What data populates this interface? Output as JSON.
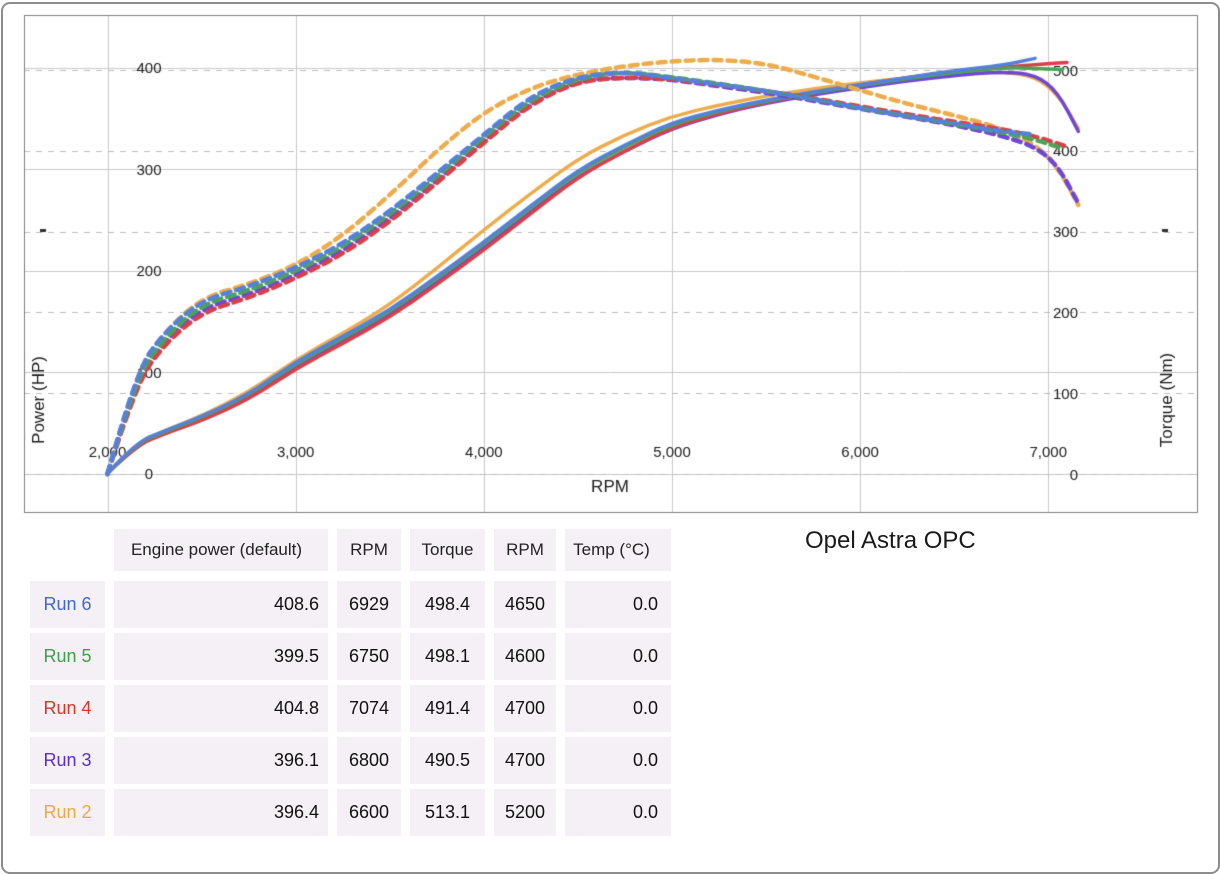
{
  "title": "Opel Astra OPC",
  "chart": {
    "x_axis": {
      "title": "RPM",
      "ticks": [
        {
          "v": 2000,
          "label": "2,000"
        },
        {
          "v": 3000,
          "label": "3,000"
        },
        {
          "v": 4000,
          "label": "4,000"
        },
        {
          "v": 5000,
          "label": "5,000"
        },
        {
          "v": 6000,
          "label": "6,000"
        },
        {
          "v": 7000,
          "label": "7,000"
        }
      ]
    },
    "left_axis": {
      "title": "Power (HP)",
      "ticks": [
        {
          "v": 0,
          "label": "0"
        },
        {
          "v": 100,
          "label": "100"
        },
        {
          "v": 200,
          "label": "200"
        },
        {
          "v": 300,
          "label": "300"
        },
        {
          "v": 400,
          "label": "400"
        }
      ]
    },
    "right_axis": {
      "title": "Torque (Nm)",
      "ticks": [
        {
          "v": 0,
          "label": "0"
        },
        {
          "v": 100,
          "label": "100"
        },
        {
          "v": 200,
          "label": "200"
        },
        {
          "v": 300,
          "label": "300"
        },
        {
          "v": 400,
          "label": "400"
        },
        {
          "v": 500,
          "label": "500"
        }
      ]
    }
  },
  "chart_data": {
    "type": "line",
    "title": "Opel Astra OPC",
    "xlabel": "RPM",
    "ylabel_left": "Power (HP)",
    "ylabel_right": "Torque (Nm)",
    "x_range_rpm": [
      2000,
      7160
    ],
    "left_ylim_hp": [
      0,
      440
    ],
    "right_ylim_nm": [
      0,
      545
    ],
    "grid": true,
    "legend_position": "none",
    "line_styles": {
      "power": "solid",
      "torque": "dashed"
    },
    "series": [
      {
        "name": "Run 2",
        "color": "#edac4c",
        "rpm": [
          2000,
          2150,
          2300,
          2500,
          2750,
          3000,
          3250,
          3500,
          3750,
          4000,
          4250,
          4500,
          4750,
          5000,
          5250,
          5500,
          5750,
          6000,
          6250,
          6500,
          6750,
          6930,
          7050,
          7160
        ],
        "torque_nm": [
          0,
          125,
          175,
          218,
          235,
          258,
          295,
          345,
          400,
          448,
          478,
          495,
          505,
          511,
          513,
          508,
          492,
          475,
          458,
          444,
          428,
          408,
          380,
          333
        ],
        "power_hp": [
          0,
          30,
          42,
          57,
          80,
          112,
          138,
          166,
          202,
          240,
          276,
          310,
          334,
          352,
          363,
          372,
          379,
          385,
          390,
          394,
          396,
          391,
          374,
          340
        ]
      },
      {
        "name": "Run 3",
        "color": "#6e47d6",
        "rpm": [
          2000,
          2150,
          2300,
          2500,
          2750,
          3000,
          3250,
          3500,
          3750,
          4000,
          4250,
          4500,
          4750,
          5000,
          5250,
          5500,
          5750,
          6000,
          6250,
          6500,
          6750,
          6930,
          7050,
          7160
        ],
        "torque_nm": [
          0,
          114,
          164,
          205,
          222,
          246,
          276,
          316,
          363,
          413,
          460,
          487,
          491,
          488,
          480,
          472,
          462,
          452,
          442,
          432,
          419,
          405,
          382,
          335
        ],
        "power_hp": [
          0,
          28,
          40,
          53,
          75,
          105,
          130,
          156,
          188,
          222,
          258,
          293,
          318,
          340,
          354,
          365,
          373,
          380,
          387,
          392,
          396,
          393,
          376,
          337
        ]
      },
      {
        "name": "Run 4",
        "color": "#d8404a",
        "rpm": [
          2000,
          2150,
          2300,
          2500,
          2750,
          3000,
          3250,
          3500,
          3750,
          4000,
          4250,
          4500,
          4750,
          5000,
          5250,
          5500,
          5750,
          6000,
          6250,
          6500,
          6750,
          6930,
          7100
        ],
        "torque_nm": [
          0,
          110,
          160,
          200,
          218,
          242,
          272,
          312,
          360,
          410,
          458,
          486,
          491,
          489,
          482,
          474,
          465,
          455,
          445,
          436,
          427,
          418,
          405
        ],
        "power_hp": [
          0,
          27,
          39,
          52,
          73,
          103,
          128,
          154,
          186,
          220,
          256,
          292,
          318,
          341,
          355,
          366,
          375,
          383,
          390,
          396,
          400,
          403,
          405
        ]
      },
      {
        "name": "Run 5",
        "color": "#4ba455",
        "rpm": [
          2000,
          2150,
          2300,
          2500,
          2750,
          3000,
          3250,
          3500,
          3750,
          4000,
          4250,
          4500,
          4750,
          5000,
          5250,
          5500,
          5750,
          6000,
          6250,
          6500,
          6750,
          6930,
          7075
        ],
        "torque_nm": [
          0,
          118,
          168,
          210,
          227,
          251,
          281,
          321,
          368,
          417,
          464,
          490,
          498,
          491,
          483,
          474,
          464,
          453,
          443,
          433,
          423,
          414,
          403
        ],
        "power_hp": [
          0,
          29,
          41,
          55,
          77,
          108,
          133,
          159,
          192,
          226,
          262,
          297,
          322,
          344,
          357,
          367,
          375,
          382,
          389,
          395,
          400,
          399,
          398
        ]
      },
      {
        "name": "Run 6",
        "color": "#5580db",
        "rpm": [
          2000,
          2150,
          2300,
          2500,
          2750,
          3000,
          3250,
          3500,
          3750,
          4000,
          4250,
          4500,
          4750,
          5000,
          5250,
          5500,
          5750,
          6000,
          6250,
          6500,
          6750,
          6930
        ],
        "torque_nm": [
          0,
          125,
          175,
          215,
          232,
          255,
          285,
          325,
          372,
          420,
          468,
          492,
          498,
          490,
          482,
          474,
          464,
          453,
          443,
          434,
          424,
          420
        ],
        "power_hp": [
          0,
          30,
          42,
          56,
          78,
          110,
          135,
          161,
          194,
          228,
          264,
          299,
          324,
          346,
          358,
          368,
          376,
          383,
          390,
          397,
          402,
          409
        ]
      }
    ]
  },
  "table": {
    "headers": [
      "",
      "Engine power (default)",
      "RPM",
      "Torque",
      "RPM",
      "Temp (°C)"
    ],
    "rows": [
      {
        "label": "Run 6",
        "color": "#3f67d2",
        "power": "408.6",
        "power_rpm": "6929",
        "torque": "498.4",
        "torque_rpm": "4650",
        "temp": "0.0"
      },
      {
        "label": "Run 5",
        "color": "#3fa04b",
        "power": "399.5",
        "power_rpm": "6750",
        "torque": "498.1",
        "torque_rpm": "4600",
        "temp": "0.0"
      },
      {
        "label": "Run 4",
        "color": "#da3327",
        "power": "404.8",
        "power_rpm": "7074",
        "torque": "491.4",
        "torque_rpm": "4700",
        "temp": "0.0"
      },
      {
        "label": "Run 3",
        "color": "#5b2ec7",
        "power": "396.1",
        "power_rpm": "6800",
        "torque": "490.5",
        "torque_rpm": "4700",
        "temp": "0.0"
      },
      {
        "label": "Run 2",
        "color": "#eca93f",
        "power": "396.4",
        "power_rpm": "6600",
        "torque": "513.1",
        "torque_rpm": "5200",
        "temp": "0.0"
      }
    ]
  }
}
